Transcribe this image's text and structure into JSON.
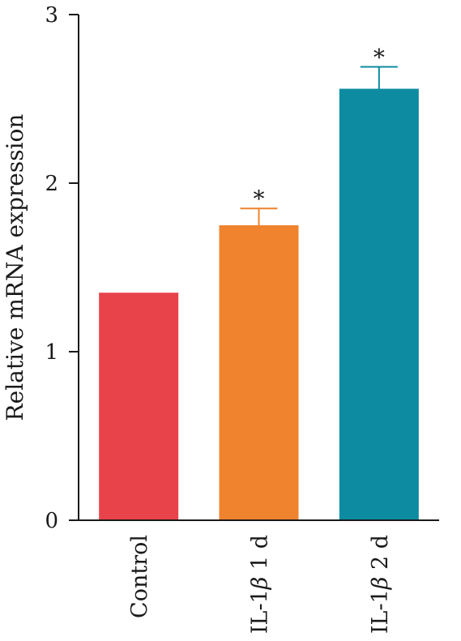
{
  "chart_data": {
    "type": "bar",
    "categories": [
      "Control",
      "IL-1β 1 d",
      "IL-1β 2 d"
    ],
    "category_parts": [
      {
        "pre": "Control",
        "greek": "",
        "post": ""
      },
      {
        "pre": "IL-1",
        "greek": "β",
        "post": " 1 d"
      },
      {
        "pre": "IL-1",
        "greek": "β",
        "post": " 2 d"
      }
    ],
    "values": [
      1.35,
      1.75,
      2.56
    ],
    "errors": [
      null,
      0.1,
      0.13
    ],
    "annotations": [
      "",
      "*",
      "*"
    ],
    "colors": [
      "#e8434a",
      "#ef832e",
      "#0c8ba1"
    ],
    "title": "",
    "xlabel": "",
    "ylabel": "Relative mRNA expression",
    "ylim": [
      0,
      3
    ],
    "yticks": [
      0,
      1,
      2,
      3
    ],
    "grid": false,
    "legend": "none"
  }
}
